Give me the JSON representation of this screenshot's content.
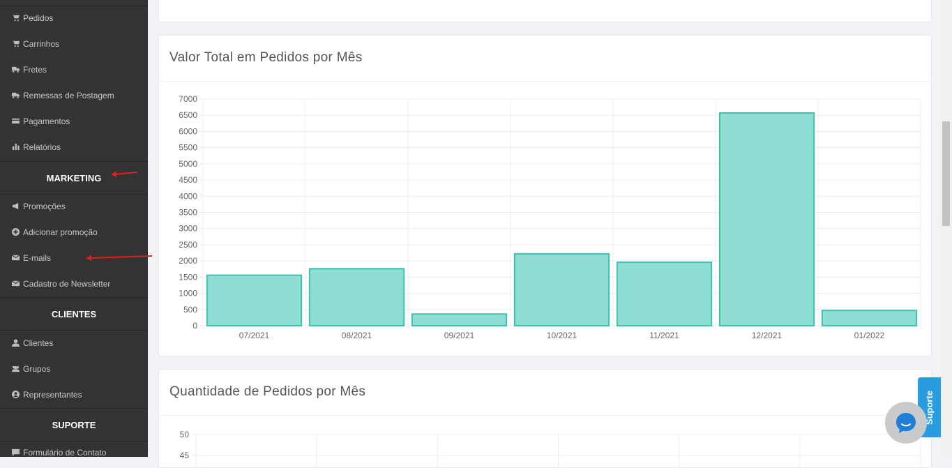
{
  "sidebar": {
    "items_top": [
      {
        "label": "Pedidos",
        "icon": "shopping-cart-icon"
      },
      {
        "label": "Carrinhos",
        "icon": "cart-icon"
      },
      {
        "label": "Fretes",
        "icon": "truck-icon"
      },
      {
        "label": "Remessas de Postagem",
        "icon": "truck-icon"
      },
      {
        "label": "Pagamentos",
        "icon": "credit-card-icon"
      },
      {
        "label": "Relatórios",
        "icon": "bar-chart-icon"
      }
    ],
    "section_marketing": "MARKETING",
    "items_marketing": [
      {
        "label": "Promoções",
        "icon": "megaphone-icon"
      },
      {
        "label": "Adicionar promoção",
        "icon": "plus-circle-icon"
      },
      {
        "label": "E-mails",
        "icon": "envelope-icon"
      },
      {
        "label": "Cadastro de Newsletter",
        "icon": "envelope-icon"
      }
    ],
    "section_clientes": "CLIENTES",
    "items_clientes": [
      {
        "label": "Clientes",
        "icon": "user-icon"
      },
      {
        "label": "Grupos",
        "icon": "users-icon"
      },
      {
        "label": "Representantes",
        "icon": "user-circle-icon"
      }
    ],
    "section_suporte": "SUPORTE",
    "items_suporte": [
      {
        "label": "Formulário de Contato",
        "icon": "comment-icon"
      }
    ]
  },
  "card_valor": {
    "title": "Valor Total em Pedidos por Mês"
  },
  "card_quantidade": {
    "title": "Quantidade de Pedidos por Mês"
  },
  "suporte_tab": "Suporte",
  "colors": {
    "bar_fill": "#8fded4",
    "bar_stroke": "#3cc2ad",
    "sidebar_bg": "#333333",
    "annotation_arrow": "#e02020",
    "suporte_blue": "#2b9be0"
  },
  "chart_data": [
    {
      "type": "bar",
      "title": "Valor Total em Pedidos por Mês",
      "categories": [
        "07/2021",
        "08/2021",
        "09/2021",
        "10/2021",
        "11/2021",
        "12/2021",
        "01/2022"
      ],
      "values": [
        1560,
        1760,
        360,
        2220,
        1960,
        6570,
        470
      ],
      "ylim": [
        0,
        7000
      ],
      "yticks": [
        0,
        500,
        1000,
        1500,
        2000,
        2500,
        3000,
        3500,
        4000,
        4500,
        5000,
        5500,
        6000,
        6500,
        7000
      ],
      "grid": true
    },
    {
      "type": "bar",
      "title": "Quantidade de Pedidos por Mês",
      "ylim": [
        0,
        50
      ],
      "yticks": [
        "50",
        "45"
      ],
      "grid": true
    }
  ]
}
